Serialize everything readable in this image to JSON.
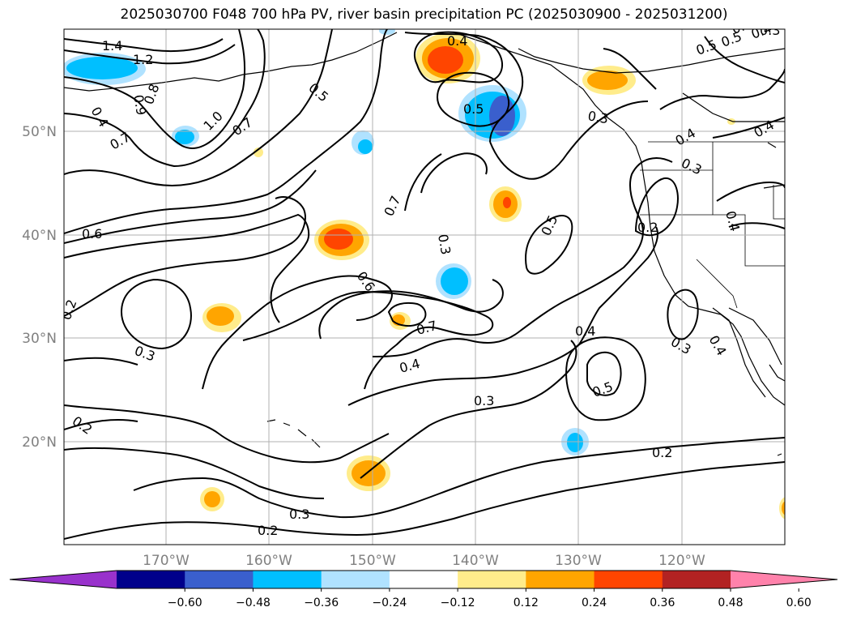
{
  "title": "2025030700 F048 700 hPa PV, river basin precipitation PC (2025030900 - 2025031200)",
  "lat_labels": [
    "50°N",
    "40°N",
    "30°N",
    "20°N"
  ],
  "lon_labels": [
    "170°W",
    "160°W",
    "150°W",
    "140°W",
    "130°W",
    "120°W"
  ],
  "contour_labels": [
    "1.4",
    "1.2",
    "0.4",
    "0.9",
    "0.8",
    "1.0",
    "0.7",
    "0.7",
    "0.5",
    "0.4",
    "0.5",
    "0.6",
    "0.7",
    "0.6",
    "0.3",
    "0.3",
    "0.7",
    "0.4",
    "0.3",
    "0.5",
    "0.2",
    "0.3",
    "0.4",
    "0.5",
    "0.3",
    "0.2",
    "0.2",
    "0.2",
    "0.3",
    "0.4",
    "0.4",
    "0.3",
    "0.2",
    "0.4",
    "0.5",
    "0.4",
    "0.5",
    "0.4",
    "0.3",
    "0.3"
  ],
  "colorbar": {
    "tick_labels": [
      "−0.60",
      "−0.48",
      "−0.36",
      "−0.24",
      "−0.12",
      "0.12",
      "0.24",
      "0.36",
      "0.48",
      "0.60"
    ],
    "colors": [
      "#9932cc",
      "#00008b",
      "#3a5fcd",
      "#00bfff",
      "#b0e2ff",
      "#ffffff",
      "#ffec8b",
      "#ffa500",
      "#ff4500",
      "#b22222",
      "#ff82ab"
    ]
  },
  "colors": {
    "grid": "#b0b0b0",
    "contour": "#000000",
    "tick_text": "#808080"
  }
}
